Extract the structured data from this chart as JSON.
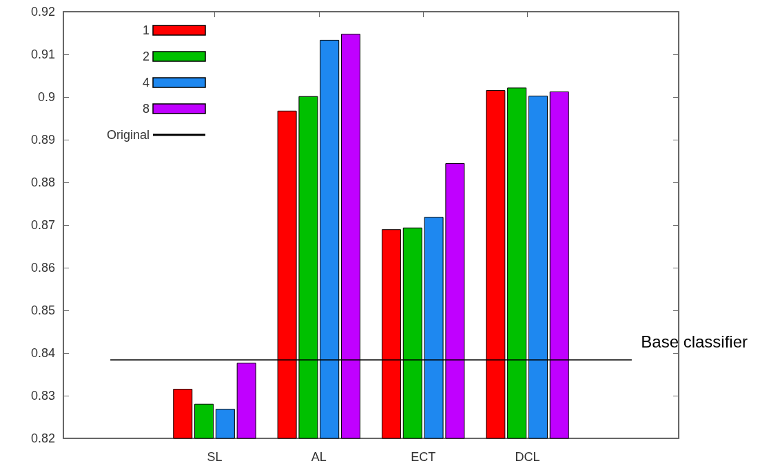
{
  "chart_data": {
    "type": "bar",
    "categories": [
      "SL",
      "AL",
      "ECT",
      "DCL"
    ],
    "series": [
      {
        "name": "1",
        "color": "#ff0000",
        "values": [
          0.8316,
          0.8968,
          0.869,
          0.9016
        ]
      },
      {
        "name": "2",
        "color": "#00c000",
        "values": [
          0.8281,
          0.9002,
          0.8694,
          0.9022
        ]
      },
      {
        "name": "4",
        "color": "#1e88f0",
        "values": [
          0.8269,
          0.9134,
          0.8719,
          0.9003
        ]
      },
      {
        "name": "8",
        "color": "#c000ff",
        "values": [
          0.8377,
          0.9148,
          0.8845,
          0.9013
        ]
      }
    ],
    "ref_lines": [
      {
        "axis": "y",
        "value": 0.8385,
        "label": "Original",
        "color": "#000000"
      }
    ],
    "annotations": [
      "Base classifier"
    ],
    "ylim": [
      0.82,
      0.92
    ],
    "yticks": [
      0.82,
      0.83,
      0.84,
      0.85,
      0.86,
      0.87,
      0.88,
      0.89,
      0.9,
      0.91,
      0.92
    ],
    "grid": false,
    "legend": "top left"
  }
}
